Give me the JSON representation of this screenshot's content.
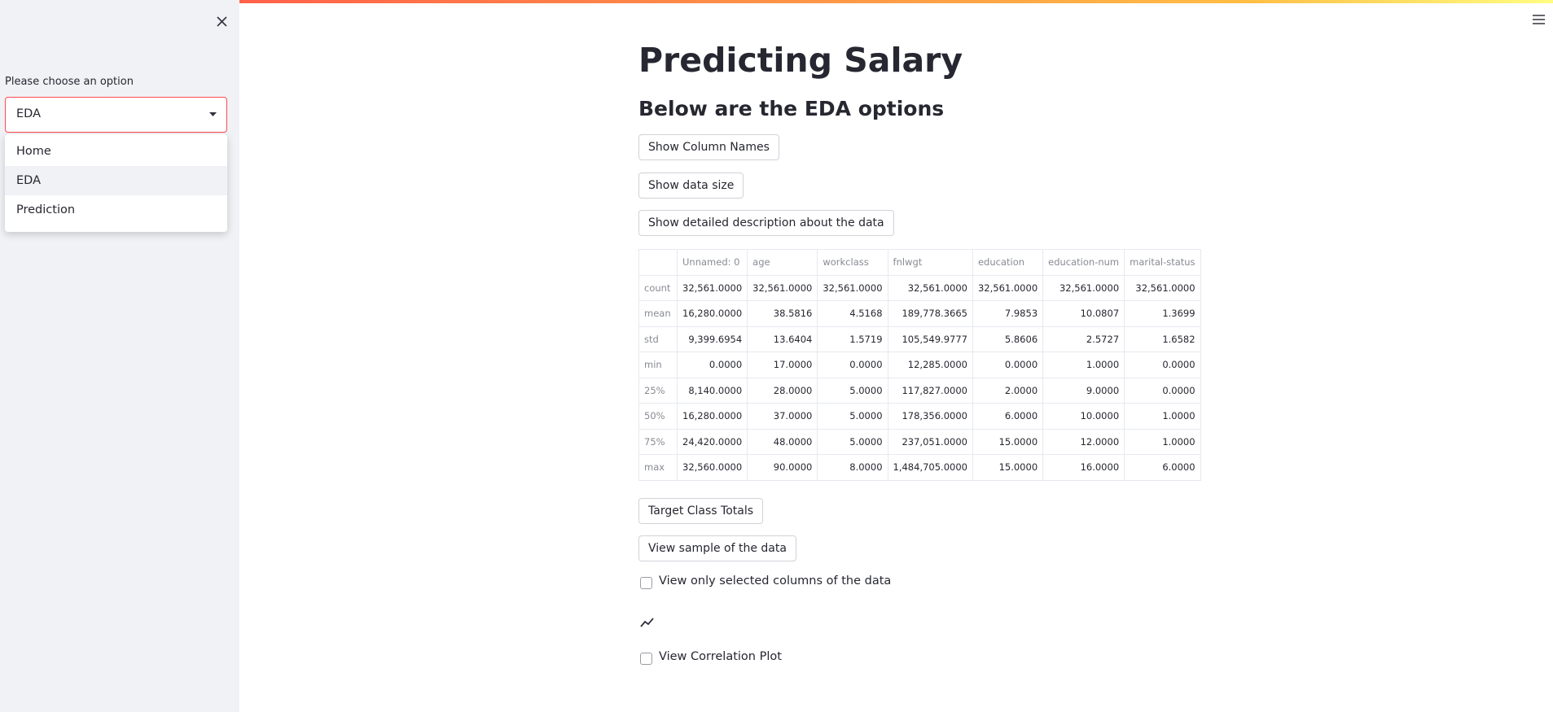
{
  "sidebar": {
    "label": "Please choose an option",
    "selected": "EDA",
    "options": [
      "Home",
      "EDA",
      "Prediction"
    ]
  },
  "main": {
    "title": "Predicting Salary",
    "subtitle": "Below are the EDA options",
    "buttons_top": [
      "Show Column Names",
      "Show data size",
      "Show detailed description about the data"
    ],
    "table": {
      "columns": [
        "Unnamed: 0",
        "age",
        "workclass",
        "fnlwgt",
        "education",
        "education-num",
        "marital-status"
      ],
      "rows": [
        [
          "count",
          "32,561.0000",
          "32,561.0000",
          "32,561.0000",
          "32,561.0000",
          "32,561.0000",
          "32,561.0000",
          "32,561.0000"
        ],
        [
          "mean",
          "16,280.0000",
          "38.5816",
          "4.5168",
          "189,778.3665",
          "7.9853",
          "10.0807",
          "1.3699"
        ],
        [
          "std",
          "9,399.6954",
          "13.6404",
          "1.5719",
          "105,549.9777",
          "5.8606",
          "2.5727",
          "1.6582"
        ],
        [
          "min",
          "0.0000",
          "17.0000",
          "0.0000",
          "12,285.0000",
          "0.0000",
          "1.0000",
          "0.0000"
        ],
        [
          "25%",
          "8,140.0000",
          "28.0000",
          "5.0000",
          "117,827.0000",
          "2.0000",
          "9.0000",
          "0.0000"
        ],
        [
          "50%",
          "16,280.0000",
          "37.0000",
          "5.0000",
          "178,356.0000",
          "6.0000",
          "10.0000",
          "1.0000"
        ],
        [
          "75%",
          "24,420.0000",
          "48.0000",
          "5.0000",
          "237,051.0000",
          "15.0000",
          "12.0000",
          "1.0000"
        ],
        [
          "max",
          "32,560.0000",
          "90.0000",
          "8.0000",
          "1,484,705.0000",
          "15.0000",
          "16.0000",
          "6.0000"
        ]
      ]
    },
    "buttons_bottom": [
      "Target Class Totals",
      "View sample of the data"
    ],
    "checkbox_columns": "View only selected columns of the data",
    "checkbox_corr": "View Correlation Plot"
  }
}
